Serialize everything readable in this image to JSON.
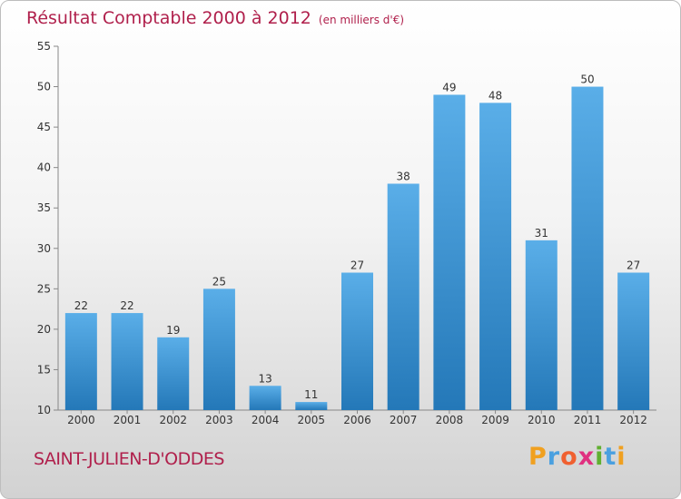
{
  "chart_data": {
    "type": "bar",
    "title": "Résultat Comptable 2000 à 2012",
    "unit": "(en milliers d'€)",
    "categories": [
      "2000",
      "2001",
      "2002",
      "2003",
      "2004",
      "2005",
      "2006",
      "2007",
      "2008",
      "2009",
      "2010",
      "2011",
      "2012"
    ],
    "values": [
      22,
      22,
      19,
      25,
      13,
      11,
      27,
      38,
      49,
      48,
      31,
      50,
      27
    ],
    "ylim": [
      10,
      55
    ],
    "yticks": [
      10,
      15,
      20,
      25,
      30,
      35,
      40,
      45,
      50,
      55
    ],
    "xlabel": "",
    "ylabel": "",
    "grid": false
  },
  "footer": {
    "town": "SAINT-JULIEN-D'ODDES",
    "logo_letters": [
      "P",
      "r",
      "o",
      "x",
      "i",
      "t",
      "i"
    ]
  },
  "colors": {
    "title": "#b0204c",
    "bar_top": "#5aaee8",
    "bar_bottom": "#2478b8"
  }
}
